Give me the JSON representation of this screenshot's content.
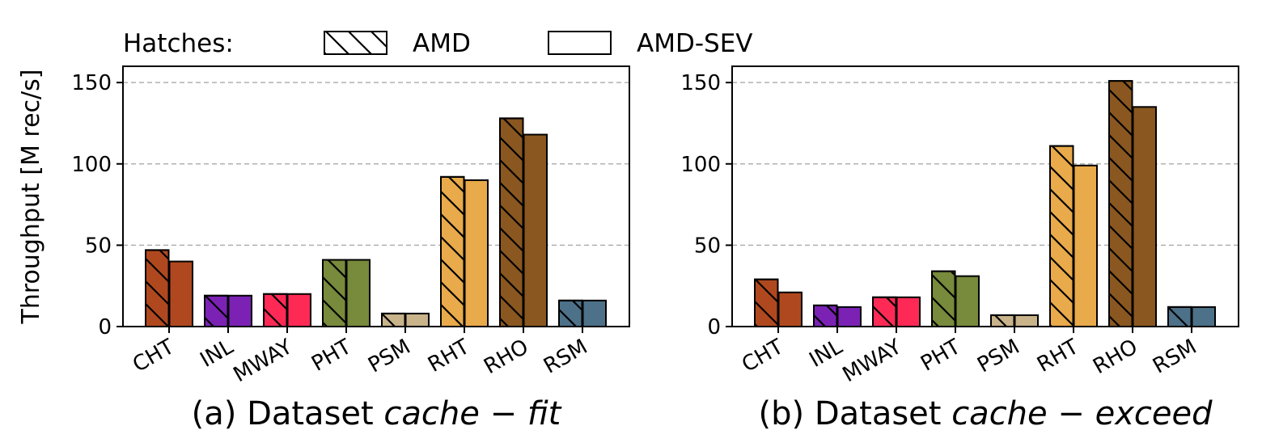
{
  "legend": {
    "title": "Hatches:",
    "items": [
      {
        "label": "AMD",
        "hatched": true
      },
      {
        "label": "AMD-SEV",
        "hatched": false
      }
    ]
  },
  "ylabel": "Throughput [M rec/s]",
  "colors": {
    "CHT": "#b0481f",
    "INL": "#7b22b5",
    "MWAY": "#fe2a55",
    "PHT": "#788a3b",
    "PSM": "#c8b38a",
    "RHT": "#e8aa4a",
    "RHO": "#8a5720",
    "RSM": "#4d7189"
  },
  "chart_data": [
    {
      "type": "bar",
      "caption_prefix": "(a) Dataset ",
      "caption_italic": "cache − fit",
      "categories": [
        "CHT",
        "INL",
        "MWAY",
        "PHT",
        "PSM",
        "RHT",
        "RHO",
        "RSM"
      ],
      "series": [
        {
          "name": "AMD",
          "values": [
            47,
            19,
            20,
            41,
            8,
            92,
            128,
            16
          ]
        },
        {
          "name": "AMD-SEV",
          "values": [
            40,
            19,
            20,
            41,
            8,
            90,
            118,
            16
          ]
        }
      ],
      "yticks": [
        0,
        50,
        100,
        150
      ],
      "ylim": [
        0,
        160
      ],
      "grid": "y-dashed"
    },
    {
      "type": "bar",
      "caption_prefix": "(b) Dataset ",
      "caption_italic": "cache − exceed",
      "categories": [
        "CHT",
        "INL",
        "MWAY",
        "PHT",
        "PSM",
        "RHT",
        "RHO",
        "RSM"
      ],
      "series": [
        {
          "name": "AMD",
          "values": [
            29,
            13,
            18,
            34,
            7,
            111,
            151,
            12
          ]
        },
        {
          "name": "AMD-SEV",
          "values": [
            21,
            12,
            18,
            31,
            7,
            99,
            135,
            12
          ]
        }
      ],
      "yticks": [
        0,
        50,
        100,
        150
      ],
      "ylim": [
        0,
        160
      ],
      "grid": "y-dashed"
    }
  ]
}
